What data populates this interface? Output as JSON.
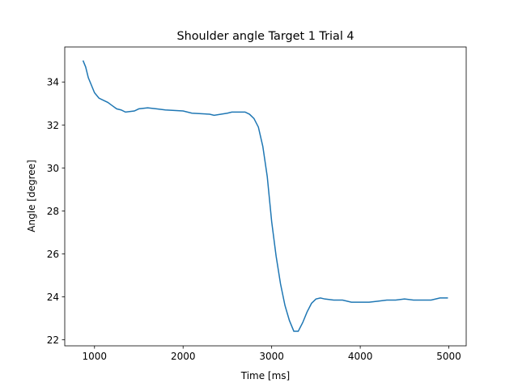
{
  "chart_data": {
    "type": "line",
    "title": "Shoulder angle Target 1 Trial 4",
    "x_label": "Time [ms]",
    "y_label": "Angle [degree]",
    "x": [
      870,
      900,
      930,
      960,
      1000,
      1050,
      1100,
      1150,
      1200,
      1250,
      1300,
      1350,
      1450,
      1500,
      1600,
      1700,
      1800,
      2000,
      2100,
      2300,
      2350,
      2500,
      2550,
      2700,
      2750,
      2800,
      2850,
      2900,
      2950,
      3000,
      3050,
      3100,
      3150,
      3200,
      3250,
      3300,
      3350,
      3400,
      3450,
      3500,
      3550,
      3600,
      3700,
      3800,
      3900,
      4000,
      4100,
      4200,
      4300,
      4400,
      4500,
      4600,
      4800,
      4900,
      4990
    ],
    "series": [
      {
        "name": "Shoulder angle",
        "color": "#1f77b4",
        "values": [
          35.0,
          34.7,
          34.2,
          33.9,
          33.5,
          33.25,
          33.15,
          33.05,
          32.9,
          32.75,
          32.7,
          32.6,
          32.65,
          32.75,
          32.8,
          32.75,
          32.7,
          32.65,
          32.55,
          32.5,
          32.45,
          32.55,
          32.6,
          32.6,
          32.5,
          32.3,
          31.9,
          31.0,
          29.6,
          27.5,
          25.9,
          24.6,
          23.6,
          22.9,
          22.4,
          22.4,
          22.8,
          23.3,
          23.7,
          23.9,
          23.95,
          23.9,
          23.85,
          23.85,
          23.75,
          23.75,
          23.75,
          23.8,
          23.85,
          23.85,
          23.9,
          23.85,
          23.85,
          23.95,
          23.95
        ]
      }
    ],
    "xlim": [
      664,
      5196
    ],
    "ylim": [
      21.72,
      35.63
    ],
    "xticks": [
      1000,
      2000,
      3000,
      4000,
      5000
    ],
    "yticks": [
      22,
      24,
      26,
      28,
      30,
      32,
      34
    ],
    "grid": false
  }
}
